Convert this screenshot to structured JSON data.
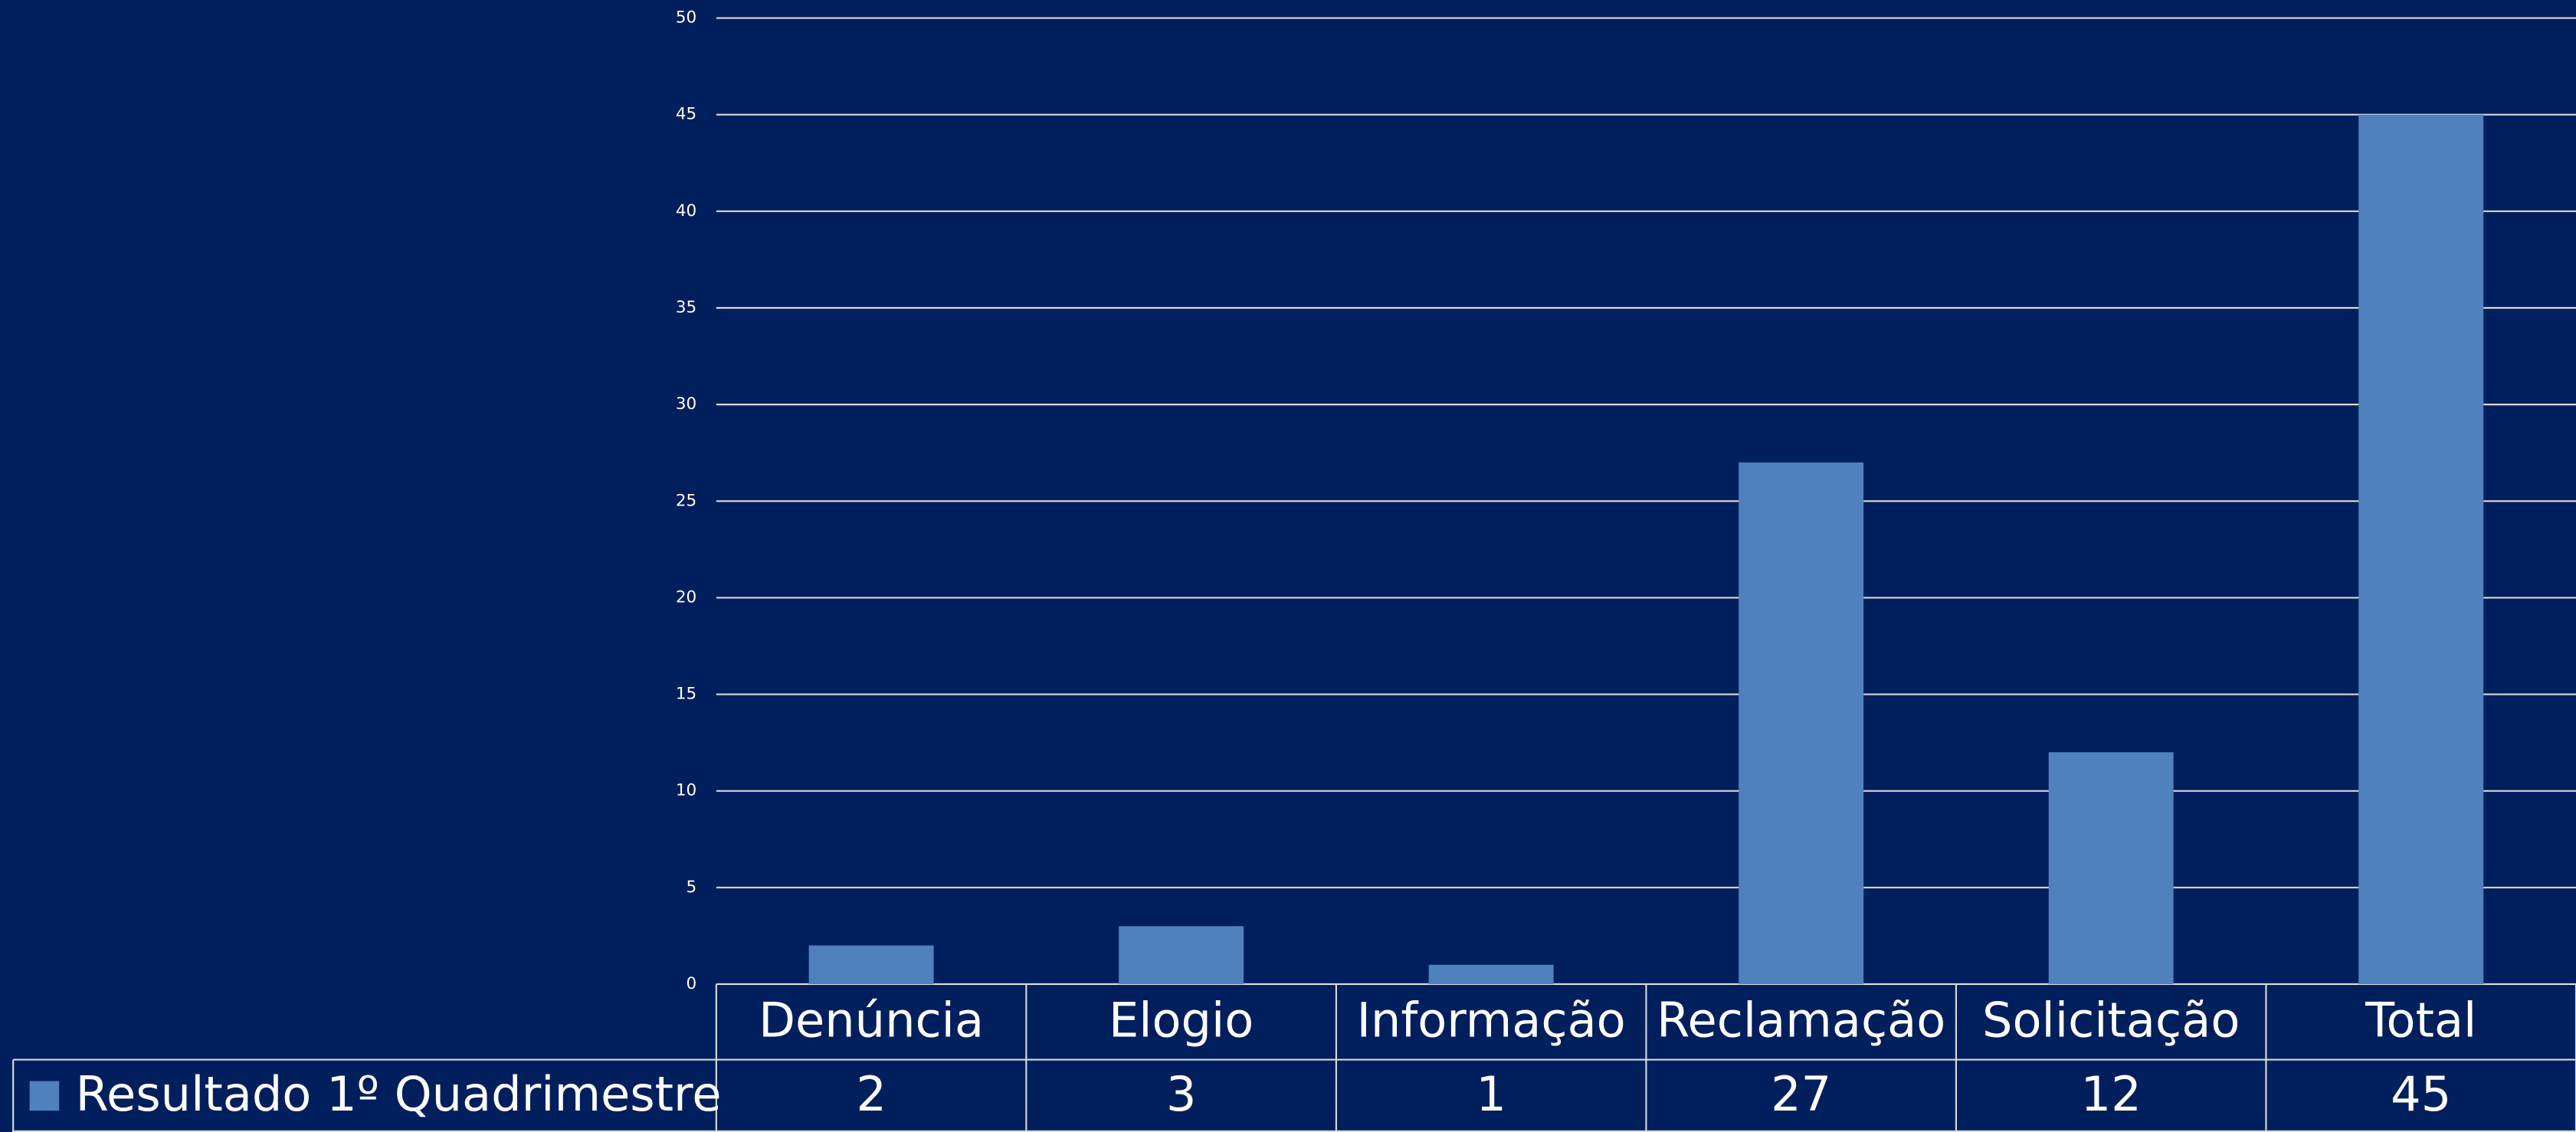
{
  "chart_data": {
    "type": "bar",
    "categories": [
      "Denúncia",
      "Elogio",
      "Informação",
      "Reclamação",
      "Solicitação",
      "Total"
    ],
    "series": [
      {
        "name": "Resultado 1º Quadrimestre",
        "color": "#4f81bd",
        "values": [
          2,
          3,
          1,
          27,
          12,
          45
        ]
      }
    ],
    "ylim": [
      0,
      50
    ],
    "yticks": [
      0,
      5,
      10,
      15,
      20,
      25,
      30,
      35,
      40,
      45,
      50
    ],
    "grid": true
  }
}
